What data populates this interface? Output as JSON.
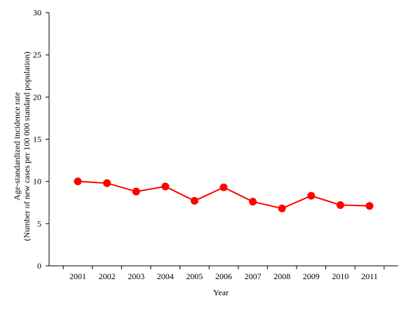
{
  "chart_data": {
    "type": "line",
    "xlabel": "Year",
    "ylabel_line1": "Age-standardized incidence rate",
    "ylabel_line2": "(Number of new cases per 100 000 standard population)",
    "ylim": [
      0,
      30
    ],
    "yticks": [
      "0",
      "5",
      "10",
      "15",
      "20",
      "25",
      "30"
    ],
    "categories": [
      "2001",
      "2002",
      "2003",
      "2004",
      "2005",
      "2006",
      "2007",
      "2008",
      "2009",
      "2010",
      "2011"
    ],
    "series": [
      {
        "color": "#ff0000",
        "values": [
          10.0,
          9.8,
          8.8,
          9.4,
          7.7,
          9.3,
          7.6,
          6.8,
          8.3,
          7.2,
          7.1
        ]
      }
    ],
    "grid": false,
    "legend": "none"
  }
}
